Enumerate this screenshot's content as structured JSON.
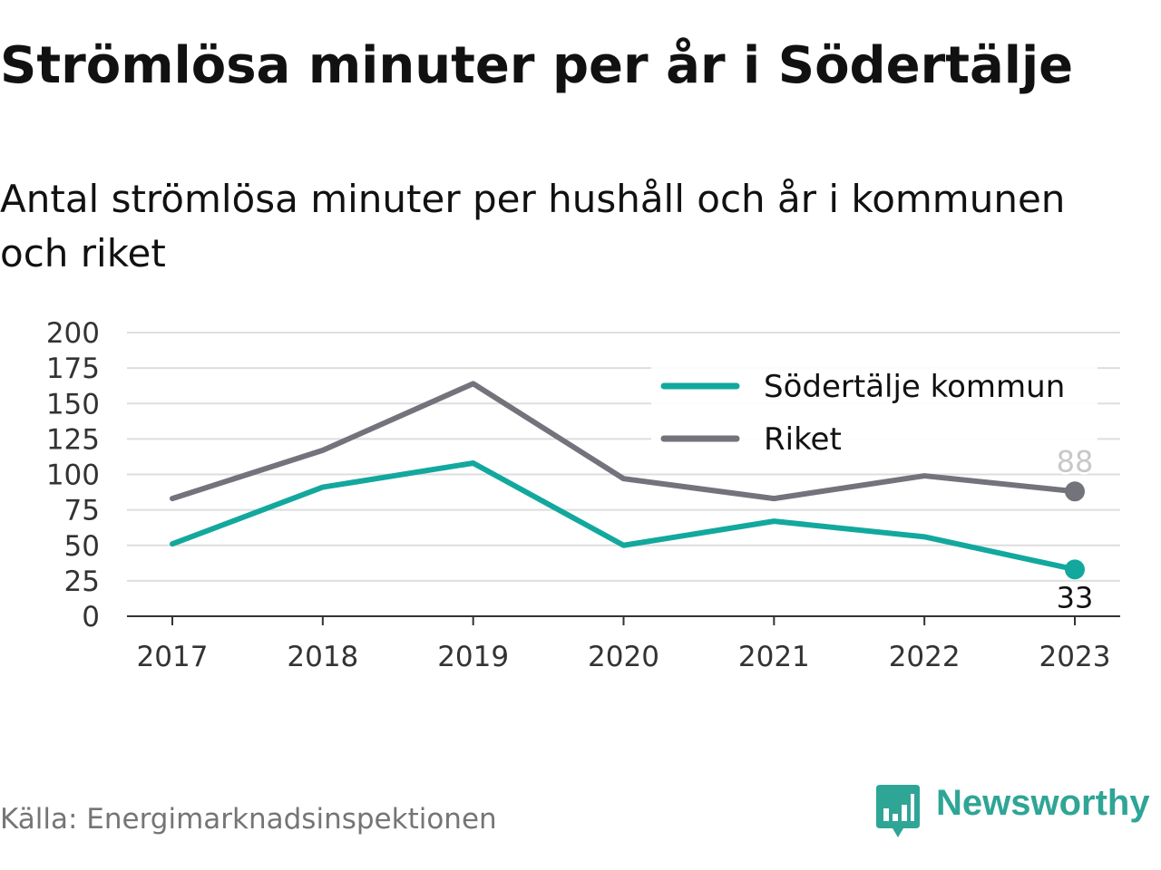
{
  "header": {
    "title": "Strömlösa minuter per år i Södertälje",
    "subtitle": "Antal strömlösa minuter per hushåll och år i kommunen och riket"
  },
  "footer": {
    "source": "Källa: Energimarknadsinspektionen",
    "brand": "Newsworthy",
    "brand_icon": "newsworthy-logo-icon"
  },
  "colors": {
    "sodertalje": "#13a89e",
    "riket": "#73737c",
    "grid": "#dedede",
    "brand": "#2fa596"
  },
  "chart_data": {
    "type": "line",
    "title": "Strömlösa minuter per år i Södertälje",
    "subtitle": "Antal strömlösa minuter per hushåll och år i kommunen och riket",
    "xlabel": "",
    "ylabel": "",
    "x": [
      "2017",
      "2018",
      "2019",
      "2020",
      "2021",
      "2022",
      "2023"
    ],
    "ylim": [
      0,
      200
    ],
    "yticks": [
      "0",
      "25",
      "50",
      "75",
      "100",
      "125",
      "150",
      "175",
      "200"
    ],
    "grid": true,
    "legend_position": "top-right",
    "series": [
      {
        "name": "Södertälje kommun",
        "values": [
          51,
          91,
          108,
          50,
          67,
          56,
          33
        ],
        "color": "#13a89e",
        "end_label": "33"
      },
      {
        "name": "Riket",
        "values": [
          83,
          117,
          164,
          97,
          83,
          99,
          88
        ],
        "color": "#73737c",
        "end_label": "88"
      }
    ]
  }
}
